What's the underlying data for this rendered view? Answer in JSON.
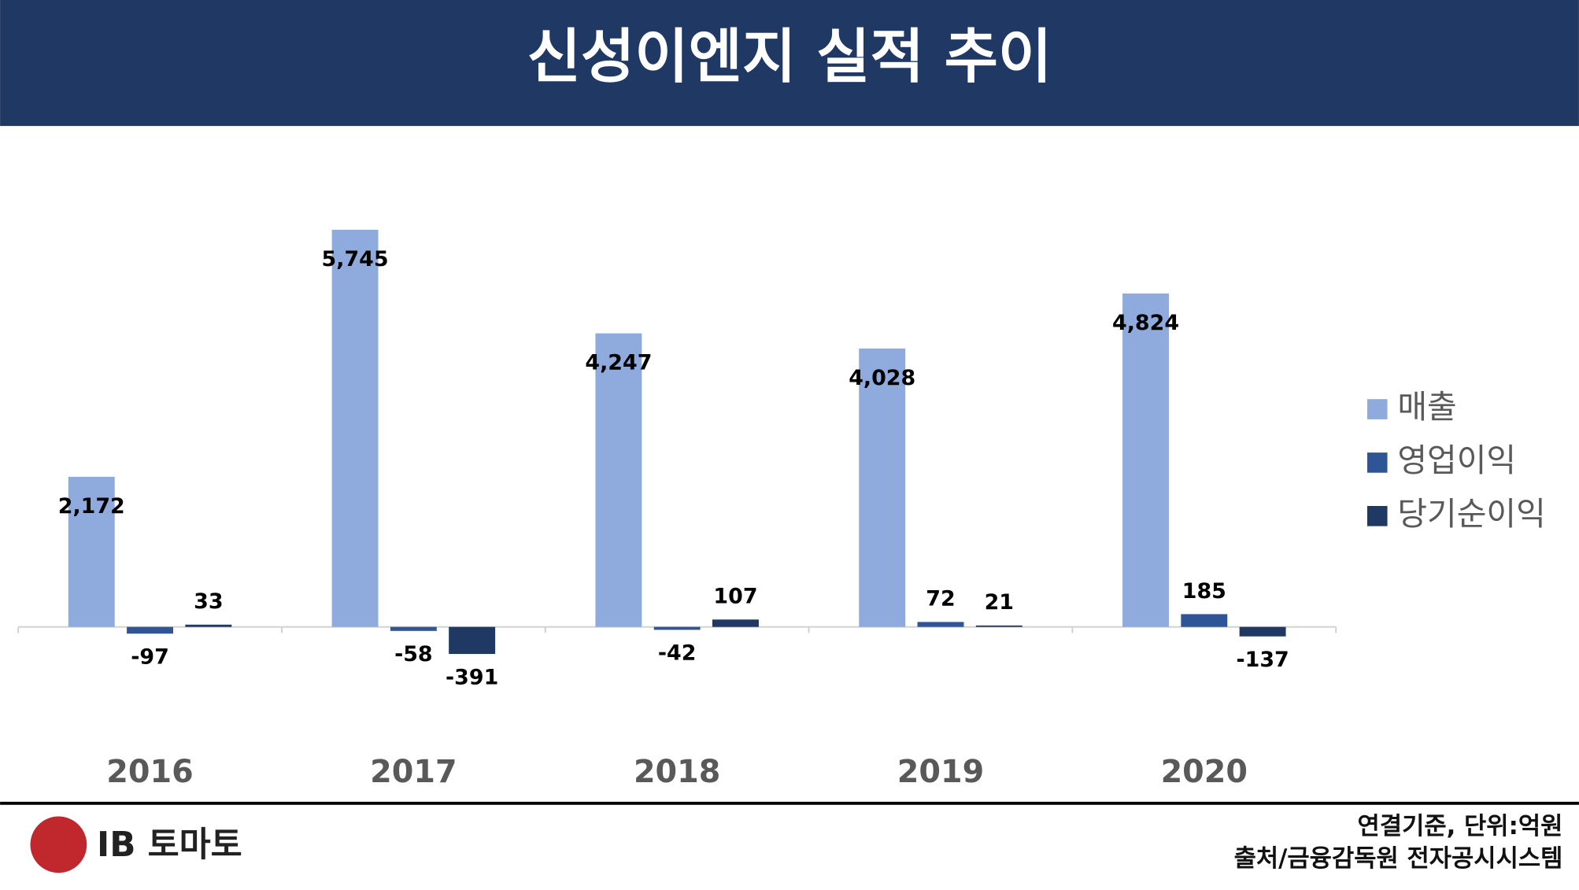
{
  "chart_data": {
    "type": "bar",
    "title": "신성이엔지 실적 추이",
    "categories": [
      "2016",
      "2017",
      "2018",
      "2019",
      "2020"
    ],
    "series": [
      {
        "name": "매출",
        "color": "#8faadc",
        "values": [
          2172,
          5745,
          4247,
          4028,
          4824
        ],
        "value_labels": [
          "2,172",
          "5,745",
          "4,247",
          "4,028",
          "4,824"
        ]
      },
      {
        "name": "영업이익",
        "color": "#2f5597",
        "values": [
          -97,
          -58,
          -42,
          72,
          185
        ]
      },
      {
        "name": "당기순이익",
        "color": "#1f3864",
        "values": [
          33,
          -391,
          107,
          21,
          -137
        ]
      }
    ],
    "legend": "right",
    "notes": [
      "연결기준, 단위:억원",
      "출처/금융감독원 전자공시시스템"
    ],
    "logo": "IB 토마토"
  }
}
